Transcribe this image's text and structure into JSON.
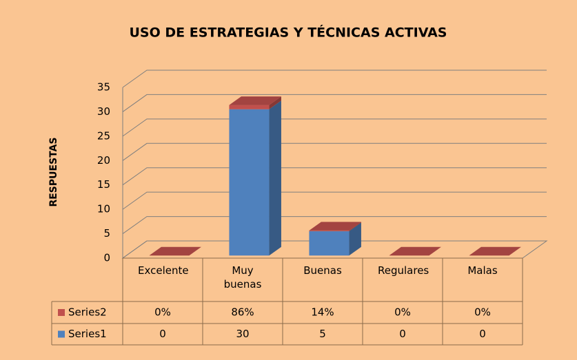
{
  "chart_data": {
    "type": "bar3d_stacked",
    "title": "USO DE ESTRATEGIAS Y TÉCNICAS ACTIVAS",
    "y_label": "RESPUESTAS",
    "categories": [
      "Excelente",
      "Muy buenas",
      "Buenas",
      "Regulares",
      "Malas"
    ],
    "series": [
      {
        "name": "Series1",
        "color": "#4f81bd",
        "values": [
          0,
          30,
          5,
          0,
          0
        ]
      },
      {
        "name": "Series2",
        "color": "#c0504d",
        "values": [
          0,
          0.86,
          0.14,
          0,
          0
        ],
        "value_labels": [
          "0%",
          "86%",
          "14%",
          "0%",
          "0%"
        ]
      }
    ],
    "ylim": [
      0,
      35
    ],
    "yticks": [
      0,
      5,
      10,
      15,
      20,
      25,
      30,
      35
    ],
    "grid": true,
    "data_table": true
  }
}
